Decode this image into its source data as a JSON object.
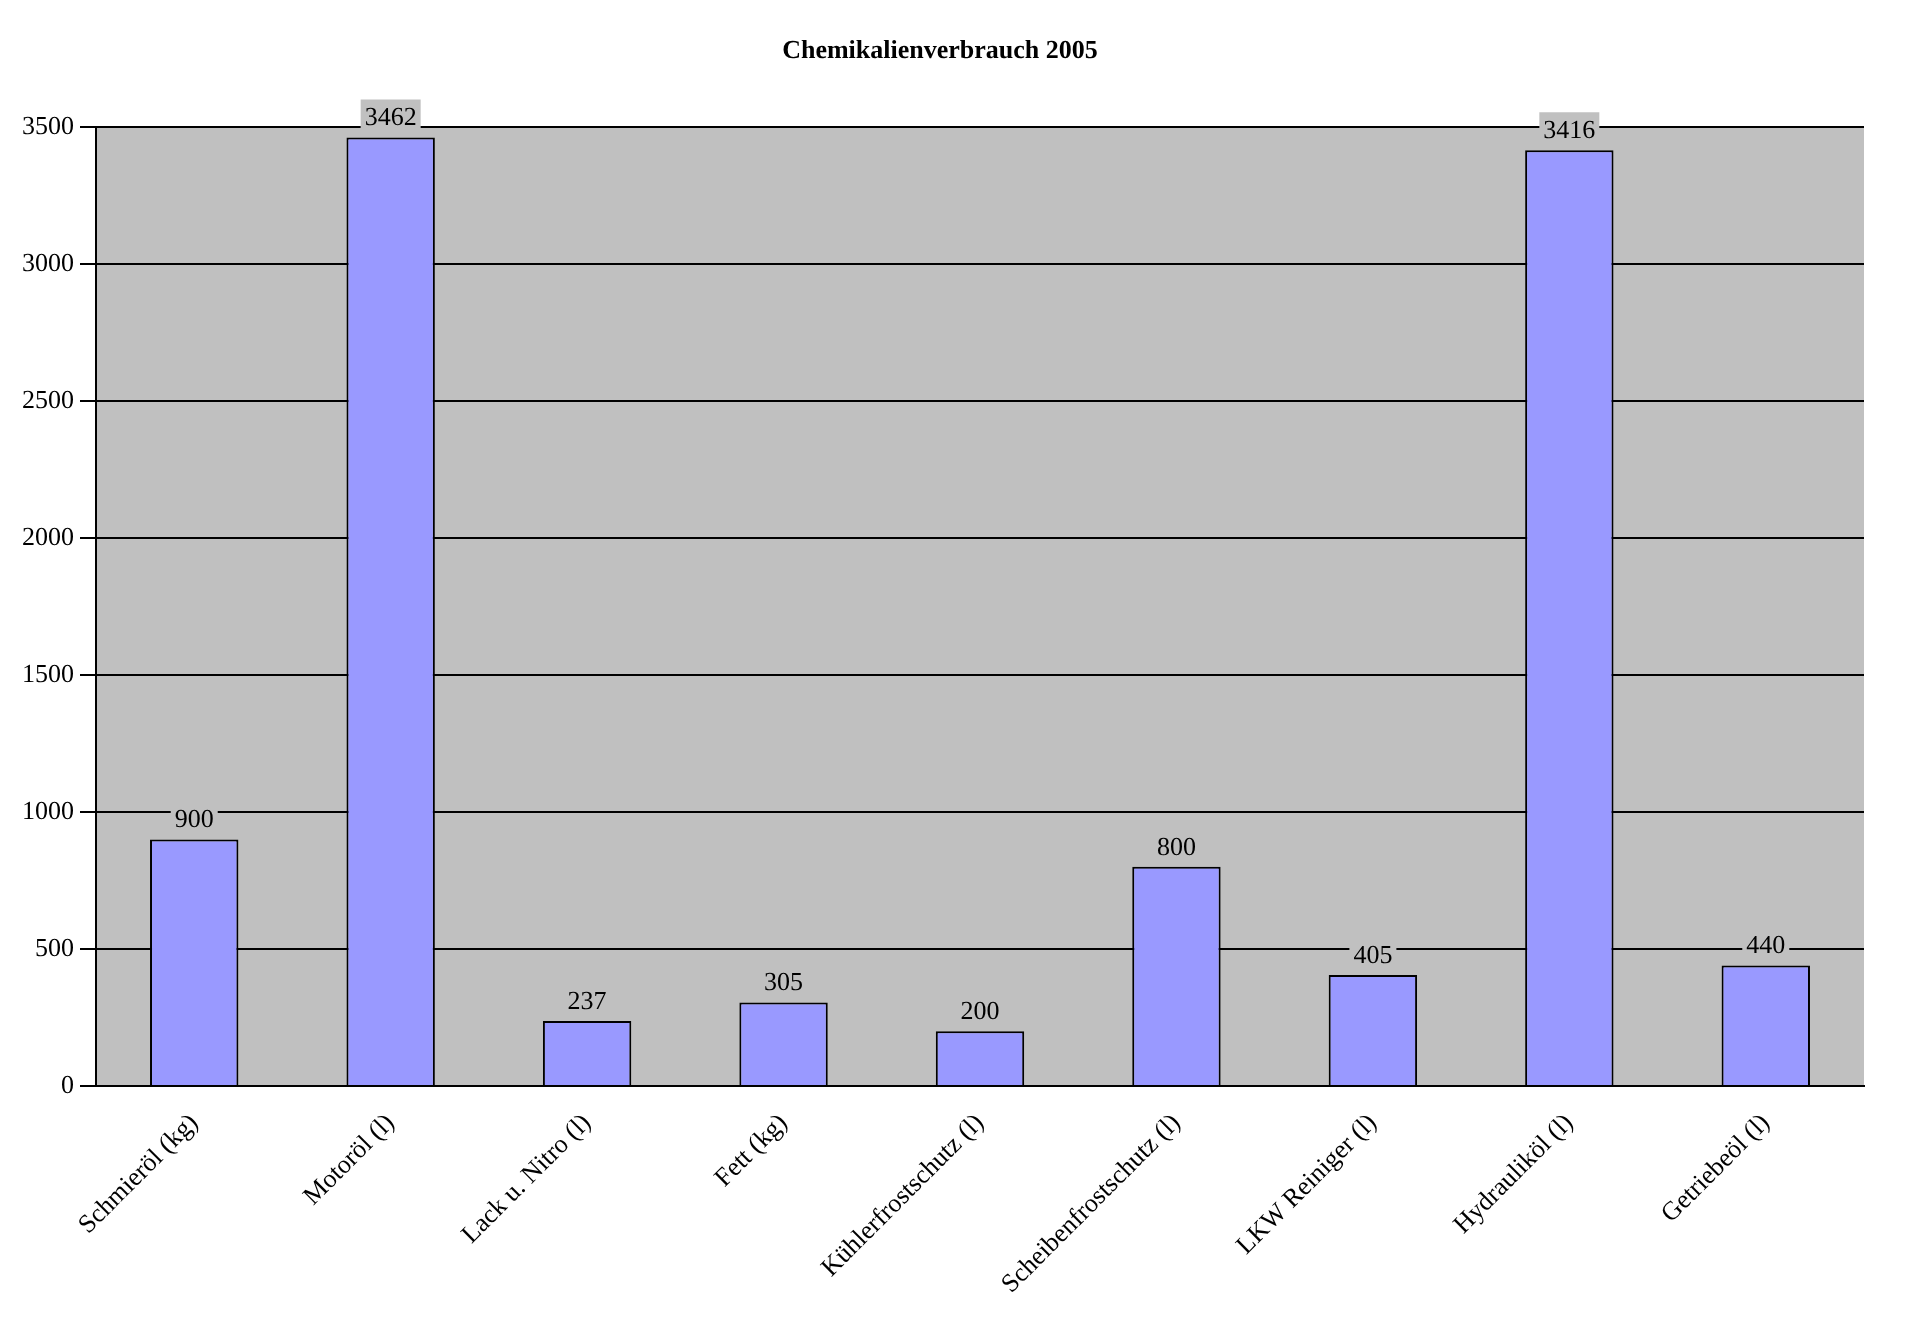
{
  "chart_data": {
    "type": "bar",
    "title": "Chemikalienverbrauch 2005",
    "categories": [
      "Schmieröl (kg)",
      "Motoröl (l)",
      "Lack u. Nitro (l)",
      "Fett (kg)",
      "Kühlerfrostschutz (l)",
      "Scheibenfrostschutz (l)",
      "LKW Reiniger (l)",
      "Hydrauliköl (l)",
      "Getriebeöl (l)"
    ],
    "values": [
      900,
      3462,
      237,
      305,
      200,
      800,
      405,
      3416,
      440
    ],
    "color": "#9999ff",
    "ylim": [
      0,
      3500
    ],
    "yticks": [
      0,
      500,
      1000,
      1500,
      2000,
      2500,
      3000,
      3500
    ],
    "grid": "y",
    "data_labels": true
  }
}
